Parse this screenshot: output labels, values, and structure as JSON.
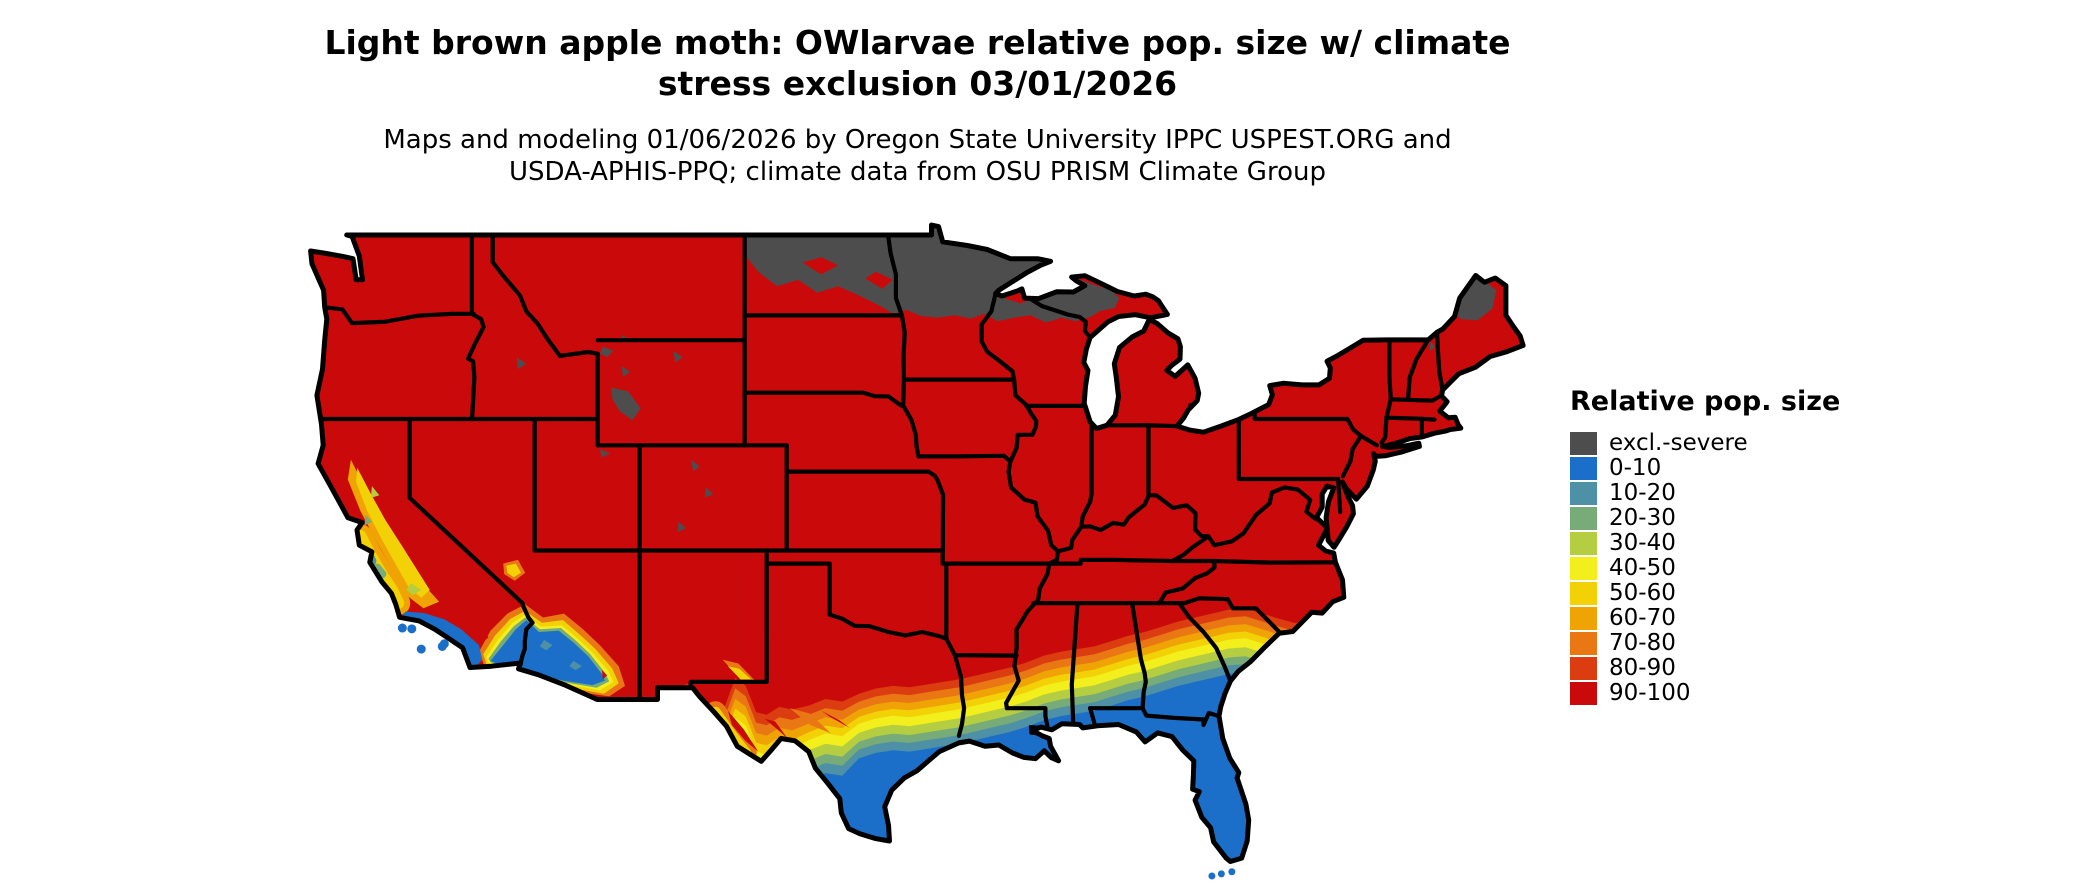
{
  "header": {
    "title_line1": "Light brown apple moth: OWlarvae relative pop. size w/ climate",
    "title_line2": "stress exclusion 03/01/2026",
    "subtitle_line1": "Maps and modeling 01/06/2026 by Oregon State University IPPC USPEST.ORG and",
    "subtitle_line2": "USDA-APHIS-PPQ; climate data from OSU PRISM Climate Group"
  },
  "legend": {
    "title": "Relative pop. size",
    "items": [
      {
        "label": "excl.-severe",
        "color": "#4D4D4D"
      },
      {
        "label": "0-10",
        "color": "#1B6FC8"
      },
      {
        "label": "10-20",
        "color": "#4E90A5"
      },
      {
        "label": "20-30",
        "color": "#77AB77"
      },
      {
        "label": "30-40",
        "color": "#B5CE41"
      },
      {
        "label": "40-50",
        "color": "#F2EF1D"
      },
      {
        "label": "50-60",
        "color": "#F2D206"
      },
      {
        "label": "60-70",
        "color": "#F0A305"
      },
      {
        "label": "70-80",
        "color": "#E97714"
      },
      {
        "label": "80-90",
        "color": "#DC3D10"
      },
      {
        "label": "90-100",
        "color": "#CA0A0A"
      }
    ]
  },
  "map": {
    "outline_color": "#000000",
    "water_color": "#FFFFFF",
    "background_color": "#FFFFFF"
  }
}
